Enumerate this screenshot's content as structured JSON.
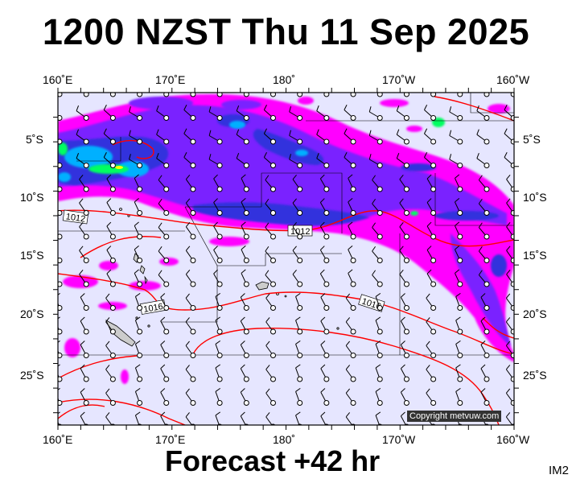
{
  "header": {
    "title": "1200 NZST Thu 11 Sep 2025"
  },
  "footer": {
    "forecast_label": "Forecast +42 hr",
    "image_code": "IM2",
    "copyright": "Copyright metvuw.com"
  },
  "axes": {
    "lon_labels": [
      {
        "lon": 160,
        "label": "160˚E"
      },
      {
        "lon": 170,
        "label": "170˚E"
      },
      {
        "lon": 180,
        "label": "180˚"
      },
      {
        "lon": 190,
        "label": "170˚W"
      },
      {
        "lon": 200,
        "label": "160˚W"
      }
    ],
    "lat_labels": [
      {
        "lat": -5,
        "label": "5˚S"
      },
      {
        "lat": -10,
        "label": "10˚S"
      },
      {
        "lat": -15,
        "label": "15˚S"
      },
      {
        "lat": -20,
        "label": "20˚S"
      },
      {
        "lat": -25,
        "label": "25˚S"
      }
    ],
    "lon_range": [
      160,
      200
    ],
    "lat_range": [
      -29,
      -2
    ]
  },
  "isobars": {
    "labels": [
      "1012",
      "1016",
      "1016",
      "1012"
    ]
  },
  "colors": {
    "ocean": "#e6e6ff",
    "isobar": "#ff0000",
    "rain_light": "#ff00ff",
    "rain_moderate": "#7a20ff",
    "rain_heavy": "#3030dd",
    "rain_intense": "#00b0ff",
    "rain_extreme": "#00ff60"
  }
}
